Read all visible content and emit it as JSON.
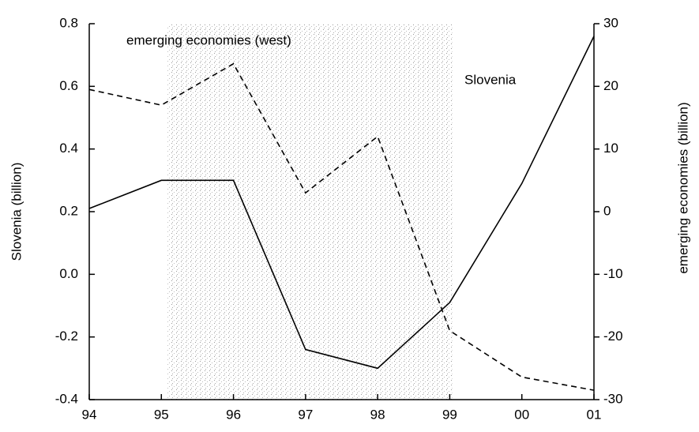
{
  "chart_data": {
    "type": "line",
    "categories": [
      "94",
      "95",
      "96",
      "97",
      "98",
      "99",
      "00",
      "01"
    ],
    "series": [
      {
        "name": "Slovenia",
        "color": "#000000",
        "dash": false,
        "axis": "y",
        "values": [
          0.21,
          0.3,
          0.3,
          -0.24,
          -0.3,
          -0.09,
          0.29,
          0.76
        ]
      },
      {
        "name": "emerging economies (west)",
        "color": "#000000",
        "dash": true,
        "axis": "y2",
        "values": [
          19.5,
          17,
          23.6,
          3,
          12,
          -19,
          -26.4,
          -28.5
        ]
      }
    ],
    "ylabel": "Slovenia (billion)",
    "y2label": "emerging economies (billion)",
    "ylim": [
      -0.4,
      0.8
    ],
    "yticks": [
      -0.4,
      -0.2,
      {
        "value": 0,
        "label": "0.0"
      },
      0.2,
      0.4,
      0.6,
      0.8
    ],
    "y2lim": [
      -30,
      30
    ],
    "y2ticks": [
      -30,
      -20,
      -10,
      0,
      10,
      20,
      30
    ],
    "shaded_span": [
      "95",
      "99"
    ]
  }
}
